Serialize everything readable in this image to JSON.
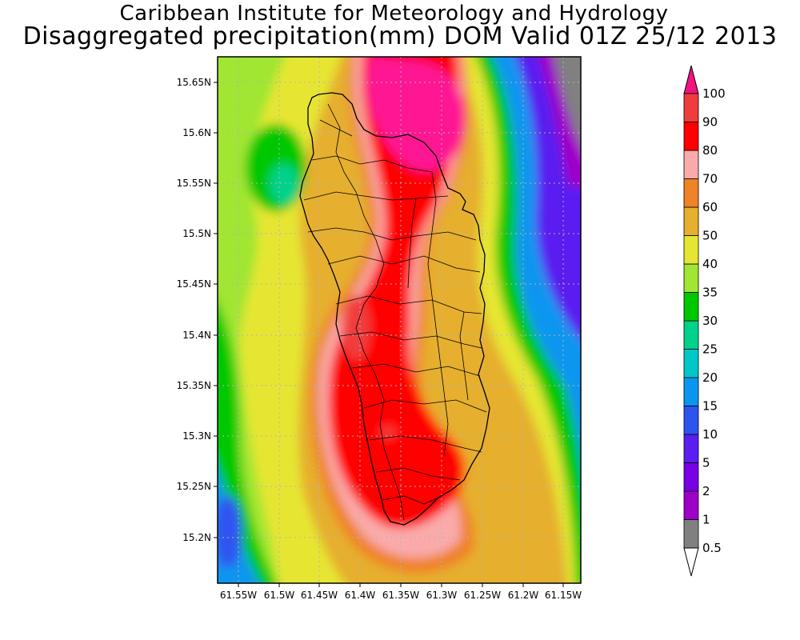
{
  "title_line1": "Caribbean Institute for Meteorology and Hydrology",
  "title_line2": "Disaggregated precipitation(mm) DOM Valid 01Z 25/12 2013",
  "map": {
    "x_ticks": [
      "61.55W",
      "61.5W",
      "61.45W",
      "61.4W",
      "61.35W",
      "61.3W",
      "61.25W",
      "61.2W",
      "61.15W"
    ],
    "y_ticks": [
      "15.65N",
      "15.6N",
      "15.55N",
      "15.5N",
      "15.45N",
      "15.4N",
      "15.35N",
      "15.3N",
      "15.25N",
      "15.2N"
    ],
    "x_range": [
      "61.575W",
      "61.135W"
    ],
    "y_range": [
      "15.155N",
      "15.68N"
    ],
    "gridlines": true
  },
  "colorbar": {
    "levels": [
      "0.5",
      "1",
      "2",
      "5",
      "10",
      "15",
      "20",
      "25",
      "30",
      "35",
      "40",
      "50",
      "60",
      "70",
      "80",
      "90",
      "100"
    ],
    "colors": [
      "#808080",
      "#9e00c8",
      "#7a00e6",
      "#5a1ef0",
      "#2e54f0",
      "#0a96f0",
      "#00c8c8",
      "#00d28c",
      "#00c800",
      "#a0e632",
      "#e6e632",
      "#e6af2d",
      "#f08228",
      "#faaaaa",
      "#ff0000",
      "#f03c3c",
      "#ff1493"
    ],
    "under_color": "#ffffff",
    "over_color": "#f0147f"
  }
}
